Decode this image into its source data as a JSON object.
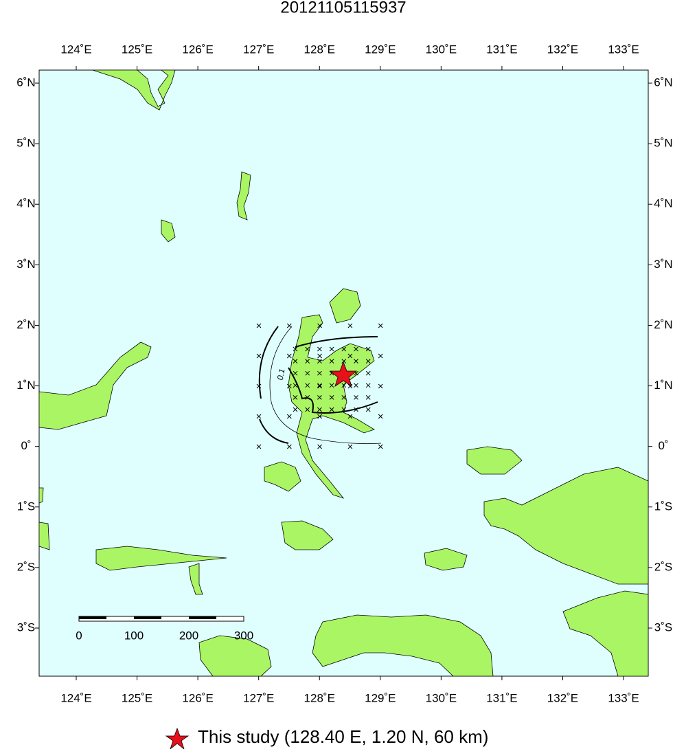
{
  "title": "20121105115937",
  "lon_ticks": [
    {
      "value": 124,
      "label": "124˚E"
    },
    {
      "value": 125,
      "label": "125˚E"
    },
    {
      "value": 126,
      "label": "126˚E"
    },
    {
      "value": 127,
      "label": "127˚E"
    },
    {
      "value": 128,
      "label": "128˚E"
    },
    {
      "value": 129,
      "label": "129˚E"
    },
    {
      "value": 130,
      "label": "130˚E"
    },
    {
      "value": 131,
      "label": "131˚E"
    },
    {
      "value": 132,
      "label": "132˚E"
    },
    {
      "value": 133,
      "label": "133˚E"
    }
  ],
  "lat_ticks": [
    {
      "value": 6,
      "label": "6˚N"
    },
    {
      "value": 5,
      "label": "5˚N"
    },
    {
      "value": 4,
      "label": "4˚N"
    },
    {
      "value": 3,
      "label": "3˚N"
    },
    {
      "value": 2,
      "label": "2˚N"
    },
    {
      "value": 1,
      "label": "1˚N"
    },
    {
      "value": 0,
      "label": "0˚"
    },
    {
      "value": -1,
      "label": "1˚S"
    },
    {
      "value": -2,
      "label": "2˚S"
    },
    {
      "value": -3,
      "label": "3˚S"
    }
  ],
  "scale_bar": [
    0,
    100,
    200,
    300
  ],
  "contour_label": "0.1",
  "legend": "This study (128.40 E, 1.20 N, 60 km)"
}
